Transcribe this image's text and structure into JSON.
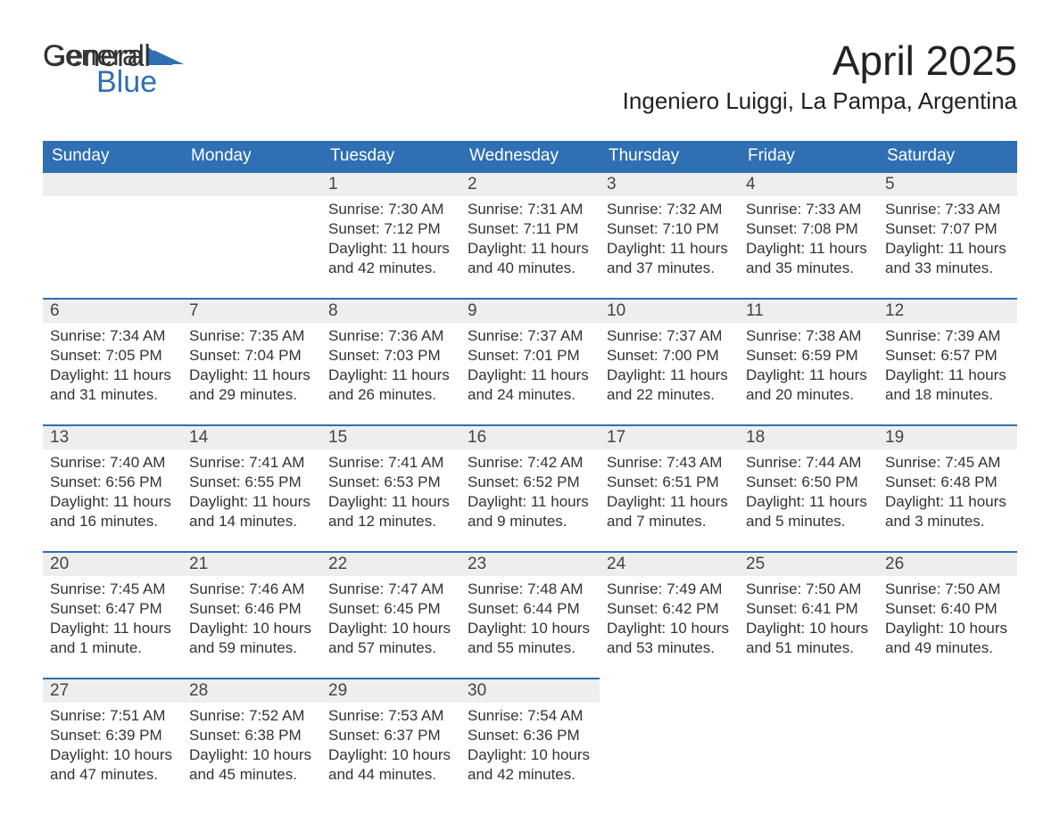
{
  "logo": {
    "part1": "General",
    "part2": "Blue"
  },
  "title": "April 2025",
  "location": "Ingeniero Luiggi, La Pampa, Argentina",
  "colors": {
    "header_bg": "#2f6fb3",
    "header_text": "#ffffff",
    "daynum_bg": "#eeeeee",
    "daynum_border": "#2f6fb3",
    "body_text": "#333333",
    "page_bg": "#ffffff",
    "logo_blue": "#2f6fb3"
  },
  "day_headers": [
    "Sunday",
    "Monday",
    "Tuesday",
    "Wednesday",
    "Thursday",
    "Friday",
    "Saturday"
  ],
  "weeks": [
    [
      {
        "blank": true
      },
      {
        "blank": true
      },
      {
        "day": "1",
        "sunrise": "Sunrise: 7:30 AM",
        "sunset": "Sunset: 7:12 PM",
        "daylight": "Daylight: 11 hours and 42 minutes."
      },
      {
        "day": "2",
        "sunrise": "Sunrise: 7:31 AM",
        "sunset": "Sunset: 7:11 PM",
        "daylight": "Daylight: 11 hours and 40 minutes."
      },
      {
        "day": "3",
        "sunrise": "Sunrise: 7:32 AM",
        "sunset": "Sunset: 7:10 PM",
        "daylight": "Daylight: 11 hours and 37 minutes."
      },
      {
        "day": "4",
        "sunrise": "Sunrise: 7:33 AM",
        "sunset": "Sunset: 7:08 PM",
        "daylight": "Daylight: 11 hours and 35 minutes."
      },
      {
        "day": "5",
        "sunrise": "Sunrise: 7:33 AM",
        "sunset": "Sunset: 7:07 PM",
        "daylight": "Daylight: 11 hours and 33 minutes."
      }
    ],
    [
      {
        "day": "6",
        "sunrise": "Sunrise: 7:34 AM",
        "sunset": "Sunset: 7:05 PM",
        "daylight": "Daylight: 11 hours and 31 minutes."
      },
      {
        "day": "7",
        "sunrise": "Sunrise: 7:35 AM",
        "sunset": "Sunset: 7:04 PM",
        "daylight": "Daylight: 11 hours and 29 minutes."
      },
      {
        "day": "8",
        "sunrise": "Sunrise: 7:36 AM",
        "sunset": "Sunset: 7:03 PM",
        "daylight": "Daylight: 11 hours and 26 minutes."
      },
      {
        "day": "9",
        "sunrise": "Sunrise: 7:37 AM",
        "sunset": "Sunset: 7:01 PM",
        "daylight": "Daylight: 11 hours and 24 minutes."
      },
      {
        "day": "10",
        "sunrise": "Sunrise: 7:37 AM",
        "sunset": "Sunset: 7:00 PM",
        "daylight": "Daylight: 11 hours and 22 minutes."
      },
      {
        "day": "11",
        "sunrise": "Sunrise: 7:38 AM",
        "sunset": "Sunset: 6:59 PM",
        "daylight": "Daylight: 11 hours and 20 minutes."
      },
      {
        "day": "12",
        "sunrise": "Sunrise: 7:39 AM",
        "sunset": "Sunset: 6:57 PM",
        "daylight": "Daylight: 11 hours and 18 minutes."
      }
    ],
    [
      {
        "day": "13",
        "sunrise": "Sunrise: 7:40 AM",
        "sunset": "Sunset: 6:56 PM",
        "daylight": "Daylight: 11 hours and 16 minutes."
      },
      {
        "day": "14",
        "sunrise": "Sunrise: 7:41 AM",
        "sunset": "Sunset: 6:55 PM",
        "daylight": "Daylight: 11 hours and 14 minutes."
      },
      {
        "day": "15",
        "sunrise": "Sunrise: 7:41 AM",
        "sunset": "Sunset: 6:53 PM",
        "daylight": "Daylight: 11 hours and 12 minutes."
      },
      {
        "day": "16",
        "sunrise": "Sunrise: 7:42 AM",
        "sunset": "Sunset: 6:52 PM",
        "daylight": "Daylight: 11 hours and 9 minutes."
      },
      {
        "day": "17",
        "sunrise": "Sunrise: 7:43 AM",
        "sunset": "Sunset: 6:51 PM",
        "daylight": "Daylight: 11 hours and 7 minutes."
      },
      {
        "day": "18",
        "sunrise": "Sunrise: 7:44 AM",
        "sunset": "Sunset: 6:50 PM",
        "daylight": "Daylight: 11 hours and 5 minutes."
      },
      {
        "day": "19",
        "sunrise": "Sunrise: 7:45 AM",
        "sunset": "Sunset: 6:48 PM",
        "daylight": "Daylight: 11 hours and 3 minutes."
      }
    ],
    [
      {
        "day": "20",
        "sunrise": "Sunrise: 7:45 AM",
        "sunset": "Sunset: 6:47 PM",
        "daylight": "Daylight: 11 hours and 1 minute."
      },
      {
        "day": "21",
        "sunrise": "Sunrise: 7:46 AM",
        "sunset": "Sunset: 6:46 PM",
        "daylight": "Daylight: 10 hours and 59 minutes."
      },
      {
        "day": "22",
        "sunrise": "Sunrise: 7:47 AM",
        "sunset": "Sunset: 6:45 PM",
        "daylight": "Daylight: 10 hours and 57 minutes."
      },
      {
        "day": "23",
        "sunrise": "Sunrise: 7:48 AM",
        "sunset": "Sunset: 6:44 PM",
        "daylight": "Daylight: 10 hours and 55 minutes."
      },
      {
        "day": "24",
        "sunrise": "Sunrise: 7:49 AM",
        "sunset": "Sunset: 6:42 PM",
        "daylight": "Daylight: 10 hours and 53 minutes."
      },
      {
        "day": "25",
        "sunrise": "Sunrise: 7:50 AM",
        "sunset": "Sunset: 6:41 PM",
        "daylight": "Daylight: 10 hours and 51 minutes."
      },
      {
        "day": "26",
        "sunrise": "Sunrise: 7:50 AM",
        "sunset": "Sunset: 6:40 PM",
        "daylight": "Daylight: 10 hours and 49 minutes."
      }
    ],
    [
      {
        "day": "27",
        "sunrise": "Sunrise: 7:51 AM",
        "sunset": "Sunset: 6:39 PM",
        "daylight": "Daylight: 10 hours and 47 minutes."
      },
      {
        "day": "28",
        "sunrise": "Sunrise: 7:52 AM",
        "sunset": "Sunset: 6:38 PM",
        "daylight": "Daylight: 10 hours and 45 minutes."
      },
      {
        "day": "29",
        "sunrise": "Sunrise: 7:53 AM",
        "sunset": "Sunset: 6:37 PM",
        "daylight": "Daylight: 10 hours and 44 minutes."
      },
      {
        "day": "30",
        "sunrise": "Sunrise: 7:54 AM",
        "sunset": "Sunset: 6:36 PM",
        "daylight": "Daylight: 10 hours and 42 minutes."
      },
      {
        "blank": true
      },
      {
        "blank": true
      },
      {
        "blank": true
      }
    ]
  ]
}
